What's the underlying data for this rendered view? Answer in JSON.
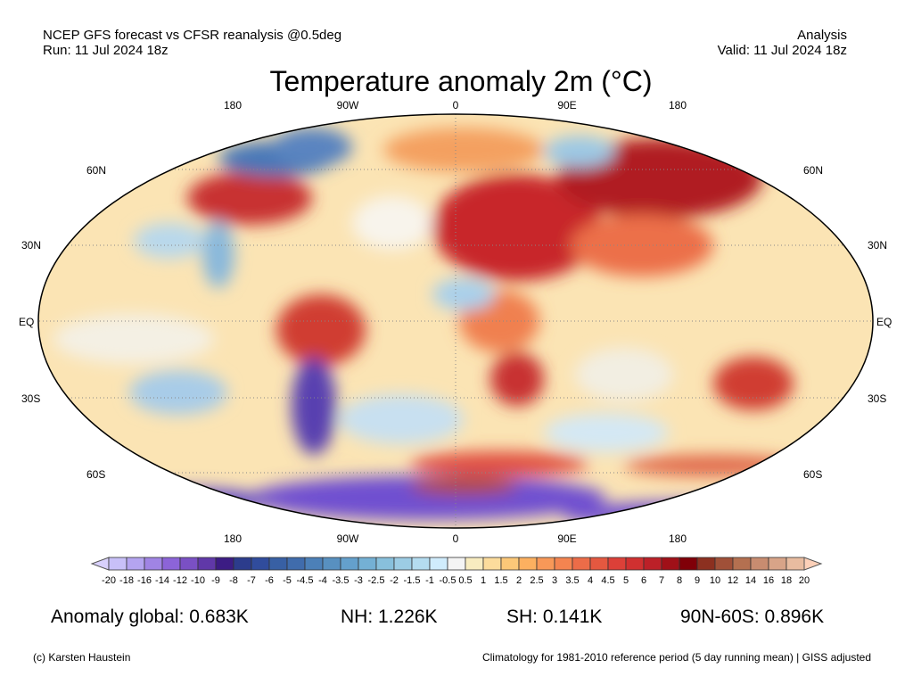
{
  "header": {
    "source": "NCEP GFS forecast vs CFSR reanalysis @0.5deg",
    "run": "Run: 11 Jul 2024 18z",
    "type": "Analysis",
    "valid": "Valid: 11 Jul 2024 18z",
    "title": "Temperature anomaly 2m (°C)"
  },
  "map": {
    "projection": "Robinson",
    "lon_labels": [
      "180",
      "90W",
      "0",
      "90E",
      "180"
    ],
    "lat_labels": [
      "60N",
      "30N",
      "EQ",
      "30S",
      "60S"
    ],
    "ocean_base_color": "#fbe4b4"
  },
  "colorbar": {
    "labels": [
      "-20",
      "-18",
      "-16",
      "-14",
      "-12",
      "-10",
      "-9",
      "-8",
      "-7",
      "-6",
      "-5",
      "-4.5",
      "-4",
      "-3.5",
      "-3",
      "-2.5",
      "-2",
      "-1.5",
      "-1",
      "-0.5",
      "0.5",
      "1",
      "1.5",
      "2",
      "2.5",
      "3",
      "3.5",
      "4",
      "4.5",
      "5",
      "6",
      "7",
      "8",
      "9",
      "10",
      "12",
      "14",
      "16",
      "18",
      "20"
    ],
    "colors": [
      "#c8c0f8",
      "#b4a4f0",
      "#a084e4",
      "#8c64d8",
      "#7a50c4",
      "#6038a8",
      "#3c1c84",
      "#2c3c8c",
      "#304c9c",
      "#3860a4",
      "#406cac",
      "#4c80b8",
      "#5890c0",
      "#64a0cc",
      "#74b0d4",
      "#88c0dc",
      "#9ccce4",
      "#b4dcf0",
      "#d0ecfc",
      "#f4f4f4",
      "#f8ecc0",
      "#fcdc9c",
      "#fcc878",
      "#fcb060",
      "#f89858",
      "#f48450",
      "#ec6c48",
      "#e45840",
      "#dc4038",
      "#d03030",
      "#bc2028",
      "#a01018",
      "#800008",
      "#8c3020",
      "#a05038",
      "#b47050",
      "#c88c70",
      "#d8a488",
      "#e8bca0"
    ],
    "under_color": "#d8d0fc",
    "over_color": "#fcd0b8"
  },
  "stats": {
    "global": "Anomaly global: 0.683K",
    "nh": "NH: 1.226K",
    "sh": "SH: 0.141K",
    "band": "90N-60S: 0.896K"
  },
  "footer": {
    "credit": "(c) Karsten Haustein",
    "note": "Climatology for 1981-2010 reference period (5 day running mean) | GISS adjusted"
  }
}
